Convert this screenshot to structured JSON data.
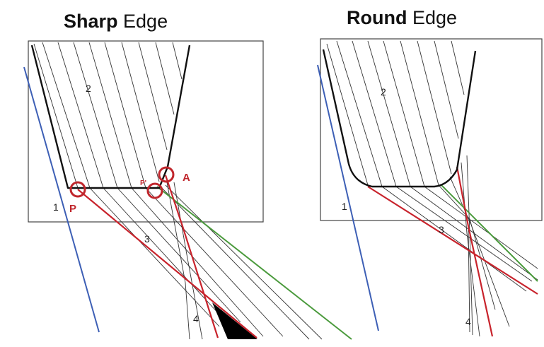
{
  "panels": [
    {
      "title_bold": "Sharp",
      "title_rest": " Edge",
      "labels": {
        "region_top": "2",
        "region_left": "1",
        "ray_main": "3",
        "ray_bottom": "4",
        "point_p": "P",
        "point_p_prime": "P'",
        "point_a": "A"
      }
    },
    {
      "title_bold": "Round",
      "title_rest": " Edge",
      "labels": {
        "region_top": "2",
        "region_left": "1",
        "ray_main": "3",
        "ray_bottom": "4"
      }
    }
  ],
  "colors": {
    "outline": "#111111",
    "blue_ray": "#3d5fb5",
    "red_ray": "#c8232c",
    "green_ray": "#4a9a3c",
    "markers": "#c0262c"
  }
}
